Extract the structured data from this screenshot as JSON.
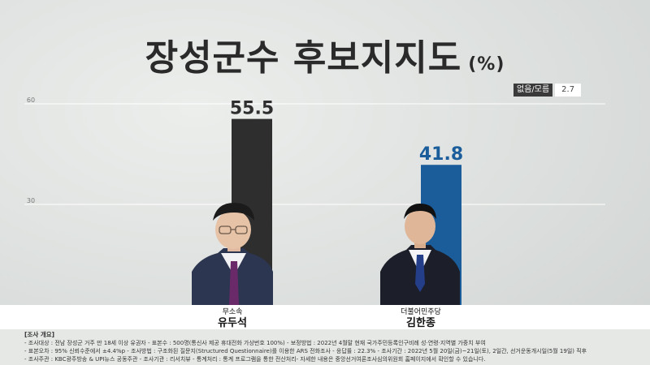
{
  "title": {
    "main": "장성군수 후보지지도",
    "unit": "(%)"
  },
  "undecided": {
    "label": "없음/모름",
    "value": "2.7"
  },
  "chart_data": {
    "type": "bar",
    "categories": [
      "유두석",
      "김한종"
    ],
    "parties": [
      "무소속",
      "더불어민주당"
    ],
    "values": [
      55.5,
      41.8
    ],
    "value_labels": [
      "55.5",
      "41.8"
    ],
    "colors": [
      "#2e2e2e",
      "#1a5d9a"
    ],
    "y_ticks": [
      30,
      60
    ],
    "y_tick_labels": [
      "30",
      "60"
    ],
    "ylim": [
      0,
      60
    ],
    "grid": true,
    "title": "장성군수 후보지지도"
  },
  "candidates": [
    {
      "party": "무소속",
      "name": "유두석"
    },
    {
      "party": "더불어민주당",
      "name": "김한종"
    }
  ],
  "survey_note": {
    "heading": "[조사 개요]",
    "lines": [
      "- 조사대상 : 전남 장성군 거주 만 18세 이상 유권자 - 표본수 : 500명(통신사 제공 휴대전화 가상번호 100%) - 보정방법 : 2022년 4월말 현재 국가주민등록인구비례 성·연령·지역별 가중치 부여",
      "- 표본오차 : 95% 신뢰수준에서 ±4.4%p - 조사방법 : 구조화된 질문지(Structured Questionnaire)를 이용한 ARS 전화조사 - 응답률 : 22.3% - 조사기간 : 2022년 5월 20일(금)~21일(토), 2일간, 선거운동개시일(5월 19일) 직후",
      "- 조사주관 : KBC광주방송 & UPI뉴스 공동주관 - 조사기관 : 리서치뷰 - 통계처리 : 통계 프로그램을 통한 전산처리- 자세한 내용은 중앙선거여론조사심의위원회 홈페이지에서 확인할 수 있습니다."
    ]
  }
}
